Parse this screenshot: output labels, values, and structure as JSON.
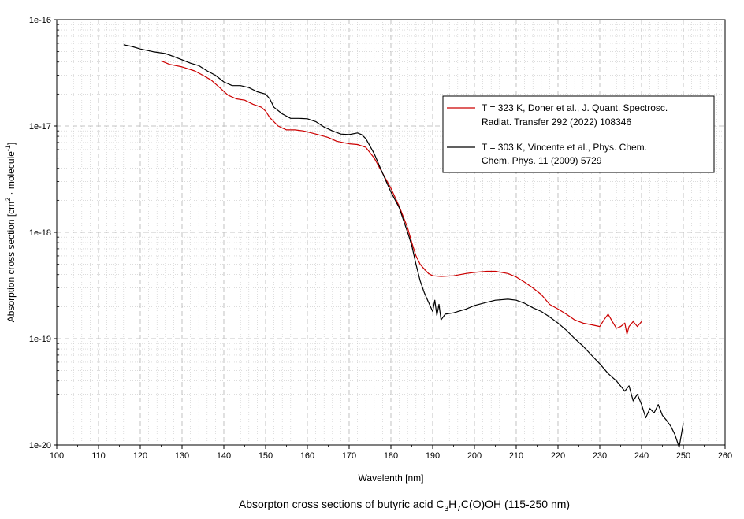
{
  "chart_data": {
    "type": "line",
    "title_main": "Absorpton cross sections of butyric acid C",
    "title_sub1": "3",
    "title_mid1": "H",
    "title_sub2": "7",
    "title_tail": "C(O)OH (115-250 nm)",
    "xlabel": "Wavelenth [nm]",
    "ylabel_main": "Absorption cross section [cm",
    "ylabel_sup1": "2",
    "ylabel_mid": " · molecule",
    "ylabel_sup2": "-1",
    "ylabel_end": "]",
    "xlim": [
      100,
      260
    ],
    "ylim": [
      1e-20,
      1e-16
    ],
    "yscale": "log",
    "xticks": [
      100,
      110,
      120,
      130,
      140,
      150,
      160,
      170,
      180,
      190,
      200,
      210,
      220,
      230,
      240,
      250,
      260
    ],
    "xtick_labels": [
      "100",
      "110",
      "120",
      "130",
      "140",
      "150",
      "160",
      "170",
      "180",
      "190",
      "200",
      "210",
      "220",
      "230",
      "240",
      "250",
      "260"
    ],
    "yticks": [
      1e-20,
      1e-19,
      1e-18,
      1e-17,
      1e-16
    ],
    "ytick_labels": [
      "1e-20",
      "1e-19",
      "1e-18",
      "1e-17",
      "1e-16"
    ],
    "grid": true,
    "legend_position": "right",
    "series": [
      {
        "name": "T = 323 K, Doner et al., J. Quant. Spectrosc. Radiat. Transfer 292 (2022) 108346",
        "legend_line1": "T = 323 K, Doner et al., J. Quant. Spectrosc.",
        "legend_line2": "Radiat. Transfer 292 (2022) 108346",
        "color": "#cc0000",
        "x": [
          125,
          127,
          130,
          133,
          135,
          137,
          139,
          141,
          143,
          145,
          147,
          149,
          150,
          151,
          153,
          155,
          157,
          159,
          161,
          163,
          165,
          167,
          170,
          172,
          174,
          176,
          178,
          180,
          182,
          184,
          185,
          186,
          187,
          188,
          189,
          190,
          192,
          195,
          198,
          200,
          203,
          205,
          208,
          210,
          212,
          214,
          216,
          218,
          220,
          222,
          224,
          226,
          228,
          230,
          231,
          232,
          233,
          234,
          235,
          236,
          236.5,
          237,
          238,
          239,
          240
        ],
        "y": [
          4.1e-17,
          3.8e-17,
          3.6e-17,
          3.3e-17,
          3e-17,
          2.7e-17,
          2.3e-17,
          1.95e-17,
          1.8e-17,
          1.75e-17,
          1.6e-17,
          1.5e-17,
          1.38e-17,
          1.2e-17,
          1e-17,
          9.2e-18,
          9.2e-18,
          9e-18,
          8.6e-18,
          8.2e-18,
          7.8e-18,
          7.2e-18,
          6.8e-18,
          6.7e-18,
          6.3e-18,
          5e-18,
          3.6e-18,
          2.6e-18,
          1.75e-18,
          1.1e-18,
          8e-19,
          6e-19,
          5e-19,
          4.5e-19,
          4.1e-19,
          3.9e-19,
          3.85e-19,
          3.9e-19,
          4.1e-19,
          4.2e-19,
          4.3e-19,
          4.3e-19,
          4.1e-19,
          3.8e-19,
          3.4e-19,
          3e-19,
          2.6e-19,
          2.1e-19,
          1.9e-19,
          1.7e-19,
          1.5e-19,
          1.4e-19,
          1.35e-19,
          1.3e-19,
          1.5e-19,
          1.7e-19,
          1.45e-19,
          1.25e-19,
          1.3e-19,
          1.4e-19,
          1.1e-19,
          1.3e-19,
          1.45e-19,
          1.3e-19,
          1.45e-19
        ]
      },
      {
        "name": "T = 303 K, Vincente et al., Phys. Chem. Chem. Phys. 11 (2009) 5729",
        "legend_line1": "T = 303 K, Vincente et al., Phys. Chem.",
        "legend_line2": "Chem. Phys. 11 (2009) 5729",
        "color": "#000000",
        "x": [
          116,
          118,
          120,
          123,
          126,
          128,
          130,
          132,
          134,
          136,
          138,
          140,
          142,
          144,
          146,
          148,
          150,
          151,
          152,
          154,
          156,
          158,
          160,
          162,
          164,
          166,
          168,
          170,
          172,
          173,
          174,
          176,
          178,
          180,
          182,
          183,
          184,
          185,
          186,
          187,
          188,
          189,
          190,
          190.5,
          191,
          191.5,
          192,
          193,
          195,
          198,
          200,
          203,
          205,
          208,
          210,
          212,
          214,
          216,
          218,
          220,
          222,
          224,
          226,
          228,
          230,
          232,
          234,
          236,
          237,
          238,
          239,
          240,
          241,
          242,
          243,
          244,
          245,
          246,
          247,
          248,
          249,
          250
        ],
        "y": [
          5.8e-17,
          5.6e-17,
          5.3e-17,
          5e-17,
          4.8e-17,
          4.5e-17,
          4.2e-17,
          3.9e-17,
          3.7e-17,
          3.3e-17,
          3e-17,
          2.6e-17,
          2.4e-17,
          2.4e-17,
          2.3e-17,
          2.1e-17,
          2e-17,
          1.8e-17,
          1.5e-17,
          1.3e-17,
          1.18e-17,
          1.18e-17,
          1.17e-17,
          1.1e-17,
          9.8e-18,
          9e-18,
          8.4e-18,
          8.3e-18,
          8.6e-18,
          8.3e-18,
          7.6e-18,
          5.5e-18,
          3.6e-18,
          2.4e-18,
          1.7e-18,
          1.3e-18,
          1e-18,
          7.5e-19,
          5e-19,
          3.5e-19,
          2.7e-19,
          2.2e-19,
          1.8e-19,
          2.3e-19,
          1.65e-19,
          2.1e-19,
          1.5e-19,
          1.7e-19,
          1.75e-19,
          1.9e-19,
          2.05e-19,
          2.2e-19,
          2.3e-19,
          2.35e-19,
          2.3e-19,
          2.15e-19,
          1.95e-19,
          1.8e-19,
          1.6e-19,
          1.4e-19,
          1.2e-19,
          1e-19,
          8.5e-20,
          7e-20,
          5.8e-20,
          4.7e-20,
          4e-20,
          3.2e-20,
          3.6e-20,
          2.6e-20,
          3e-20,
          2.4e-20,
          1.8e-20,
          2.2e-20,
          2e-20,
          2.4e-20,
          1.9e-20,
          1.7e-20,
          1.5e-20,
          1.25e-20,
          9.5e-21,
          1.6e-20
        ]
      }
    ]
  }
}
